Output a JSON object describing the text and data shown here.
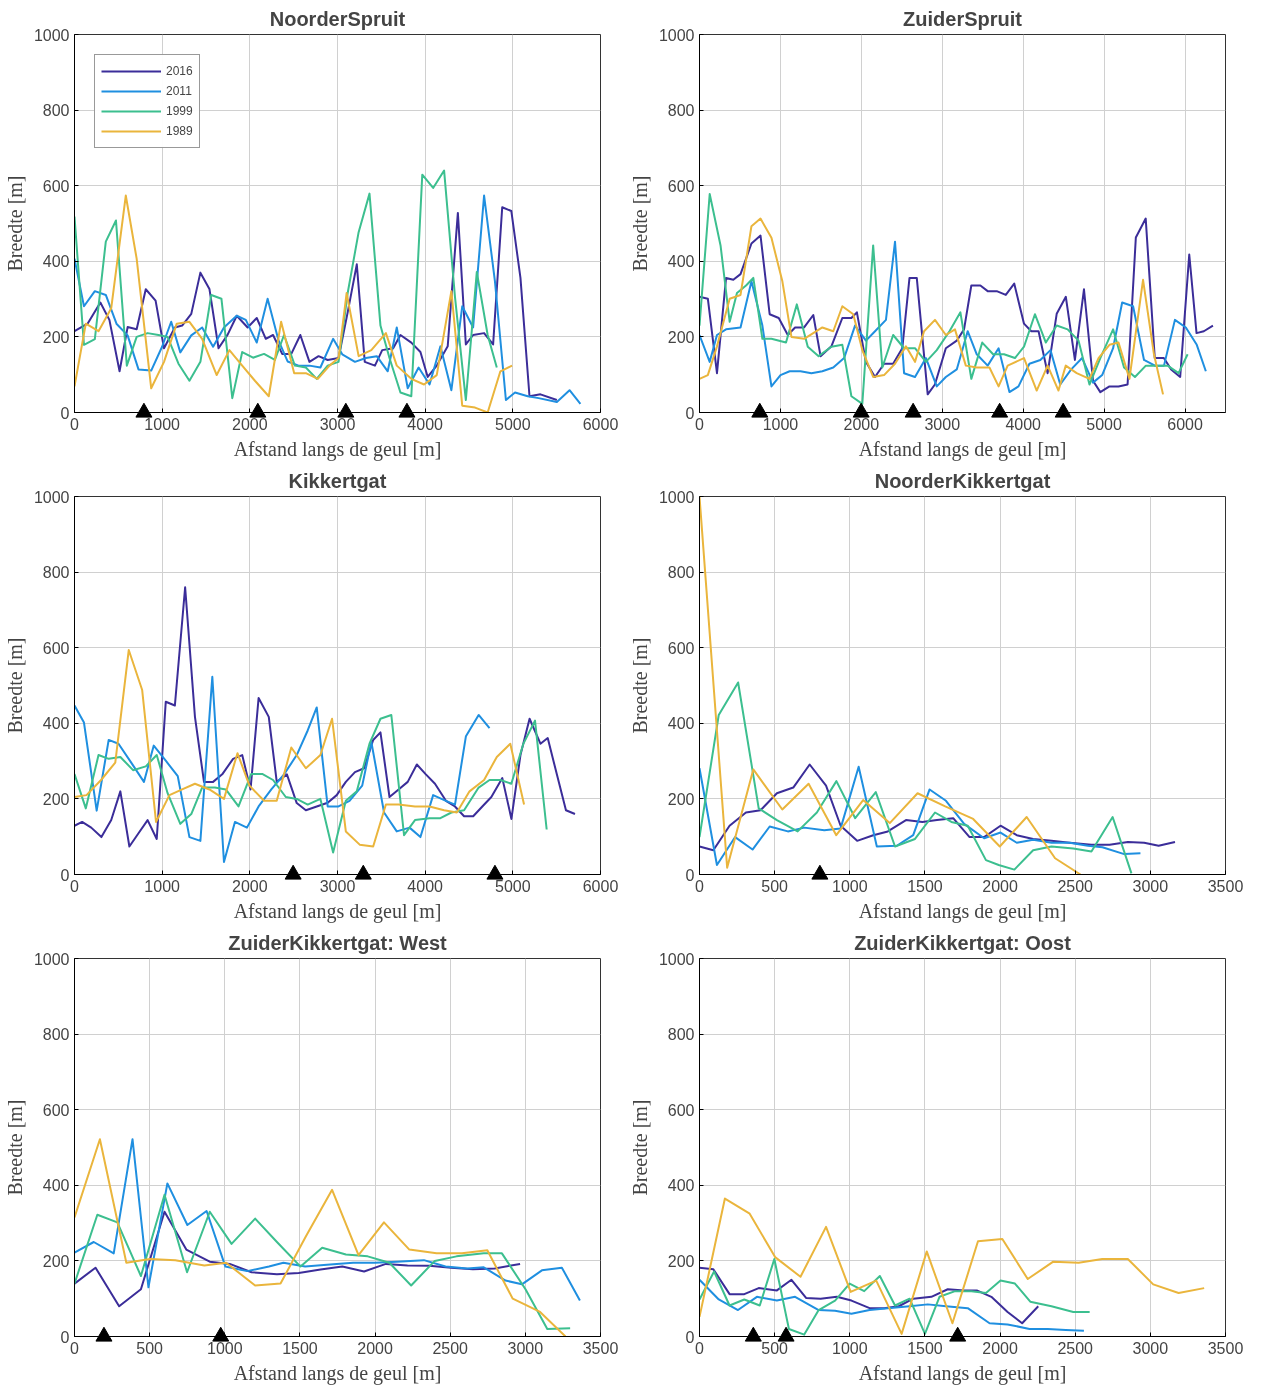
{
  "chart_data": [
    {
      "type": "line",
      "title": "NoorderSpruit",
      "xlabel": "Afstand langs de geul [m]",
      "ylabel": "Breedte [m]",
      "xlim": [
        0,
        6000
      ],
      "xticks": [
        0,
        1000,
        2000,
        3000,
        4000,
        5000,
        6000
      ],
      "ylim": [
        0,
        1000
      ],
      "yticks": [
        0,
        200,
        400,
        600,
        800,
        1000
      ],
      "grid": true,
      "legend": "top left",
      "series": [
        {
          "name": "2016",
          "color": "#3b2d99",
          "x": [
            0,
            149,
            295,
            398,
            514,
            606,
            709,
            813,
            925,
            1021,
            1145,
            1228,
            1332,
            1436,
            1539,
            1643,
            1747,
            1851,
            1975,
            2079,
            2182,
            2265,
            2369,
            2473,
            2576,
            2680,
            2784,
            2888,
            3012,
            3116,
            3220,
            3311,
            3427,
            3510,
            3635,
            3718,
            3842,
            3946,
            4029,
            4132,
            4257,
            4373,
            4464,
            4547,
            4672,
            4775,
            4879,
            4983,
            5087,
            5190,
            5315,
            5502
          ],
          "values": [
            215,
            235,
            291,
            245,
            109,
            226,
            220,
            326,
            296,
            170,
            225,
            230,
            261,
            370,
            327,
            170,
            206,
            256,
            225,
            250,
            195,
            205,
            155,
            155,
            205,
            134,
            149,
            139,
            144,
            265,
            392,
            134,
            124,
            165,
            170,
            205,
            185,
            160,
            94,
            124,
            175,
            528,
            180,
            205,
            210,
            180,
            543,
            533,
            356,
            43,
            48,
            33
          ]
        },
        {
          "name": "2011",
          "color": "#1f8fe0",
          "x": [
            0,
            108,
            232,
            357,
            481,
            606,
            730,
            875,
            999,
            1103,
            1207,
            1332,
            1456,
            1581,
            1705,
            1850,
            1954,
            2079,
            2203,
            2328,
            2431,
            2556,
            2680,
            2805,
            2950,
            3054,
            3199,
            3324,
            3448,
            3573,
            3676,
            3801,
            3925,
            4050,
            4174,
            4299,
            4423,
            4547,
            4672,
            4796,
            4921,
            5025,
            5170,
            5294,
            5502,
            5647,
            5771
          ],
          "values": [
            407,
            281,
            321,
            311,
            234,
            204,
            114,
            111,
            174,
            240,
            159,
            204,
            225,
            174,
            225,
            256,
            245,
            185,
            301,
            190,
            135,
            124,
            124,
            119,
            195,
            154,
            134,
            144,
            149,
            109,
            225,
            64,
            119,
            74,
            175,
            59,
            281,
            225,
            574,
            347,
            33,
            53,
            43,
            38,
            28,
            59,
            23
          ]
        },
        {
          "name": "1999",
          "color": "#3cbf8f",
          "x": [
            0,
            108,
            232,
            357,
            473,
            597,
            709,
            834,
            958,
            1062,
            1186,
            1311,
            1436,
            1560,
            1676,
            1800,
            1913,
            2037,
            2162,
            2286,
            2390,
            2514,
            2639,
            2763,
            2888,
            3012,
            3116,
            3241,
            3365,
            3490,
            3593,
            3718,
            3842,
            3967,
            4091,
            4216,
            4340,
            4464,
            4589,
            4713,
            4817
          ],
          "values": [
            518,
            179,
            194,
            452,
            508,
            124,
            200,
            210,
            205,
            200,
            129,
            84,
            134,
            311,
            301,
            38,
            160,
            145,
            155,
            139,
            205,
            124,
            119,
            89,
            124,
            134,
            316,
            477,
            579,
            230,
            144,
            53,
            43,
            629,
            594,
            640,
            306,
            33,
            372,
            205,
            119
          ]
        },
        {
          "name": "1989",
          "color": "#eab53c",
          "x": [
            0,
            129,
            274,
            419,
            585,
            709,
            875,
            1021,
            1166,
            1311,
            1456,
            1622,
            1767,
            1913,
            2058,
            2216,
            2357,
            2506,
            2639,
            2776,
            2909,
            3012,
            3104,
            3241,
            3386,
            3552,
            3676,
            3842,
            3987,
            4132,
            4299,
            4423,
            4569,
            4713,
            4858,
            4991
          ],
          "values": [
            69,
            235,
            215,
            276,
            574,
            407,
            64,
            134,
            235,
            240,
            195,
            99,
            165,
            124,
            84,
            43,
            240,
            104,
            104,
            89,
            124,
            144,
            316,
            149,
            165,
            210,
            124,
            89,
            74,
            99,
            321,
            18,
            13,
            0,
            109,
            124
          ]
        },
        {
          "type": "scatter",
          "marker": "triangle",
          "color": "#000000",
          "x": [
            792,
            2091,
            3095,
            3792
          ],
          "values": [
            0,
            0,
            0,
            0
          ]
        }
      ]
    },
    {
      "type": "line",
      "title": "ZuiderSpruit",
      "xlabel": "Afstand langs de geul [m]",
      "ylabel": "Breedte [m]",
      "xlim": [
        0,
        6500
      ],
      "xticks": [
        0,
        1000,
        2000,
        3000,
        4000,
        5000,
        6000
      ],
      "ylim": [
        0,
        1000
      ],
      "yticks": [
        0,
        200,
        400,
        600,
        800,
        1000
      ],
      "grid": true,
      "series": [
        {
          "color": "#3b2d99",
          "x": [
            0,
            103,
            216,
            328,
            418,
            507,
            642,
            754,
            867,
            979,
            1091,
            1181,
            1293,
            1406,
            1496,
            1630,
            1765,
            1877,
            1945,
            2056,
            2169,
            2281,
            2393,
            2506,
            2595,
            2685,
            2820,
            2909,
            3044,
            3179,
            3269,
            3359,
            3471,
            3561,
            3673,
            3785,
            3889,
            4010,
            4100,
            4190,
            4302,
            4414,
            4527,
            4639,
            4751,
            4863,
            4953,
            5066,
            5178,
            5290,
            5392,
            5514,
            5626,
            5738,
            5828,
            5940,
            6052,
            6142,
            6232,
            6345
          ],
          "values": [
            306,
            301,
            104,
            356,
            351,
            366,
            447,
            468,
            260,
            250,
            205,
            225,
            225,
            258,
            149,
            175,
            250,
            250,
            265,
            134,
            94,
            129,
            129,
            170,
            356,
            356,
            48,
            74,
            170,
            190,
            220,
            336,
            336,
            321,
            321,
            311,
            341,
            235,
            215,
            215,
            104,
            261,
            306,
            139,
            326,
            84,
            54,
            69,
            69,
            74,
            463,
            513,
            144,
            144,
            114,
            94,
            418,
            210,
            215,
            230
          ]
        },
        {
          "color": "#1f8fe0",
          "x": [
            0,
            126,
            216,
            328,
            507,
            642,
            777,
            889,
            1001,
            1114,
            1248,
            1383,
            1518,
            1653,
            1787,
            1922,
            2057,
            2169,
            2304,
            2416,
            2528,
            2663,
            2798,
            2932,
            3044,
            3179,
            3314,
            3426,
            3561,
            3696,
            3830,
            3942,
            4077,
            4212,
            4337,
            4458,
            4593,
            4728,
            4863,
            4976,
            5111,
            5223,
            5358,
            5493,
            5628,
            5740,
            5875,
            6010,
            6145,
            6257
          ],
          "values": [
            205,
            134,
            205,
            220,
            225,
            347,
            230,
            69,
            99,
            109,
            109,
            104,
            109,
            119,
            144,
            230,
            190,
            215,
            245,
            452,
            104,
            94,
            144,
            69,
            94,
            114,
            215,
            154,
            124,
            170,
            54,
            69,
            129,
            139,
            165,
            74,
            114,
            144,
            79,
            99,
            170,
            291,
            281,
            139,
            124,
            124,
            245,
            225,
            179,
            109
          ]
        },
        {
          "color": "#3cbf8f",
          "x": [
            0,
            126,
            260,
            373,
            463,
            575,
            665,
            777,
            889,
            1069,
            1203,
            1338,
            1472,
            1630,
            1765,
            1877,
            2012,
            2146,
            2259,
            2393,
            2528,
            2663,
            2798,
            2932,
            3089,
            3224,
            3359,
            3494,
            3628,
            3763,
            3898,
            4010,
            4145,
            4280,
            4414,
            4549,
            4684,
            4819,
            4953,
            5111,
            5246,
            5381,
            5516,
            5650,
            5785,
            5920,
            6032
          ],
          "values": [
            230,
            578,
            442,
            240,
            316,
            336,
            356,
            195,
            195,
            185,
            286,
            174,
            149,
            174,
            179,
            43,
            23,
            442,
            119,
            205,
            170,
            170,
            134,
            165,
            215,
            265,
            89,
            185,
            154,
            154,
            144,
            174,
            260,
            185,
            230,
            220,
            190,
            74,
            144,
            220,
            119,
            94,
            124,
            124,
            124,
            104,
            154
          ]
        },
        {
          "color": "#eab53c",
          "x": [
            0,
            103,
            216,
            373,
            507,
            642,
            754,
            889,
            1024,
            1136,
            1293,
            1518,
            1653,
            1765,
            1900,
            2012,
            2146,
            2281,
            2416,
            2551,
            2663,
            2775,
            2910,
            3044,
            3157,
            3291,
            3426,
            3583,
            3696,
            3808,
            4010,
            4167,
            4302,
            4436,
            4526,
            4661,
            4819,
            4931,
            5066,
            5178,
            5313,
            5481,
            5616,
            5728
          ],
          "values": [
            89,
            99,
            175,
            301,
            311,
            493,
            513,
            462,
            347,
            200,
            195,
            225,
            215,
            281,
            260,
            165,
            94,
            99,
            129,
            175,
            134,
            215,
            245,
            205,
            220,
            124,
            119,
            119,
            69,
            124,
            144,
            58,
            124,
            58,
            124,
            104,
            89,
            144,
            179,
            185,
            89,
            351,
            154,
            48
          ]
        },
        {
          "type": "scatter",
          "marker": "triangle",
          "color": "#000000",
          "x": [
            745,
            1998,
            2640,
            3709,
            4494
          ],
          "values": [
            0,
            0,
            0,
            0,
            0
          ]
        }
      ]
    },
    {
      "type": "line",
      "title": "Kikkertgat",
      "xlabel": "Afstand langs de geul [m]",
      "ylabel": "Breedte [m]",
      "xlim": [
        0,
        6000
      ],
      "xticks": [
        0,
        1000,
        2000,
        3000,
        4000,
        5000,
        6000
      ],
      "ylim": [
        0,
        1000
      ],
      "yticks": [
        0,
        200,
        400,
        600,
        800,
        1000
      ],
      "grid": true,
      "series": [
        {
          "color": "#3b2d99",
          "x": [
            0,
            87,
            191,
            307,
            419,
            523,
            626,
            730,
            834,
            938,
            1041,
            1145,
            1262,
            1374,
            1477,
            1581,
            1685,
            1809,
            1913,
            2008,
            2100,
            2216,
            2307,
            2423,
            2535,
            2639,
            2763,
            2888,
            2991,
            3095,
            3199,
            3303,
            3407,
            3490,
            3593,
            3697,
            3801,
            3905,
            4008,
            4112,
            4237,
            4340,
            4444,
            4548,
            4652,
            4755,
            4880,
            4984,
            5087,
            5191,
            5315,
            5398,
            5502,
            5606,
            5709
          ],
          "values": [
            129,
            139,
            124,
            99,
            144,
            220,
            74,
            109,
            144,
            94,
            457,
            447,
            760,
            417,
            245,
            245,
            265,
            306,
            316,
            225,
            467,
            417,
            245,
            265,
            189,
            170,
            180,
            190,
            210,
            245,
            271,
            281,
            356,
            376,
            205,
            225,
            245,
            291,
            265,
            240,
            195,
            180,
            154,
            154,
            180,
            205,
            255,
            147,
            316,
            412,
            346,
            361,
            265,
            170,
            160
          ]
        },
        {
          "color": "#1f8fe0",
          "x": [
            0,
            108,
            253,
            390,
            502,
            647,
            792,
            904,
            1041,
            1178,
            1311,
            1436,
            1572,
            1705,
            1830,
            1967,
            2100,
            2245,
            2390,
            2535,
            2660,
            2763,
            2888,
            3012,
            3137,
            3282,
            3386,
            3531,
            3676,
            3822,
            3946,
            4091,
            4237,
            4340,
            4465,
            4610,
            4734
          ],
          "values": [
            447,
            402,
            169,
            356,
            346,
            296,
            245,
            341,
            301,
            260,
            99,
            89,
            523,
            33,
            139,
            124,
            180,
            225,
            265,
            316,
            381,
            442,
            180,
            180,
            195,
            235,
            351,
            164,
            114,
            124,
            99,
            210,
            195,
            185,
            366,
            422,
            387
          ]
        },
        {
          "color": "#3cbf8f",
          "x": [
            0,
            129,
            274,
            390,
            523,
            668,
            813,
            938,
            1062,
            1207,
            1332,
            1456,
            1601,
            1726,
            1871,
            2016,
            2141,
            2265,
            2410,
            2535,
            2660,
            2805,
            2950,
            3095,
            3220,
            3365,
            3490,
            3614,
            3759,
            3884,
            4050,
            4174,
            4299,
            4444,
            4610,
            4734,
            4859,
            4983,
            5120,
            5253,
            5386
          ],
          "values": [
            266,
            175,
            316,
            306,
            311,
            276,
            286,
            316,
            215,
            134,
            160,
            230,
            230,
            225,
            180,
            266,
            266,
            250,
            205,
            200,
            185,
            200,
            58,
            195,
            220,
            346,
            412,
            422,
            104,
            144,
            149,
            149,
            164,
            170,
            230,
            250,
            250,
            240,
            346,
            407,
            119
          ]
        },
        {
          "color": "#eab53c",
          "x": [
            0,
            137,
            303,
            465,
            619,
            772,
            930,
            1083,
            1228,
            1374,
            1539,
            1705,
            1859,
            1996,
            2162,
            2307,
            2473,
            2639,
            2805,
            2938,
            3095,
            3253,
            3407,
            3552,
            3697,
            3884,
            4050,
            4216,
            4361,
            4506,
            4672,
            4817,
            4971,
            5128
          ],
          "values": [
            205,
            210,
            250,
            296,
            594,
            488,
            139,
            210,
            225,
            240,
            225,
            200,
            321,
            235,
            195,
            195,
            336,
            281,
            316,
            412,
            114,
            79,
            74,
            185,
            185,
            180,
            180,
            170,
            164,
            220,
            250,
            311,
            346,
            185
          ]
        },
        {
          "type": "scatter",
          "marker": "triangle",
          "color": "#000000",
          "x": [
            2494,
            3294,
            4796
          ],
          "values": [
            0,
            0,
            0
          ]
        }
      ]
    },
    {
      "type": "line",
      "title": "NoorderKikkertgat",
      "xlabel": "Afstand langs de geul [m]",
      "ylabel": "Breedte [m]",
      "xlim": [
        0,
        3500
      ],
      "xticks": [
        0,
        500,
        1000,
        1500,
        2000,
        2500,
        3000,
        3500
      ],
      "ylim": [
        0,
        1000
      ],
      "yticks": [
        0,
        200,
        400,
        600,
        800,
        1000
      ],
      "grid": true,
      "series": [
        {
          "color": "#3b2d99",
          "x": [
            0,
            92,
            200,
            309,
            406,
            515,
            624,
            733,
            842,
            939,
            1049,
            1156,
            1253,
            1374,
            1483,
            1580,
            1688,
            1797,
            1894,
            2003,
            2111,
            2220,
            2342,
            2463,
            2608,
            2729,
            2850,
            2959,
            3055,
            3164
          ],
          "values": [
            74,
            64,
            129,
            164,
            170,
            215,
            230,
            291,
            235,
            129,
            89,
            104,
            114,
            144,
            139,
            144,
            149,
            99,
            99,
            129,
            104,
            94,
            89,
            84,
            79,
            79,
            86,
            84,
            76,
            86
          ]
        },
        {
          "color": "#1f8fe0",
          "x": [
            0,
            116,
            237,
            353,
            467,
            588,
            697,
            830,
            939,
            1059,
            1180,
            1313,
            1422,
            1531,
            1640,
            1761,
            1894,
            2003,
            2111,
            2220,
            2342,
            2463,
            2584,
            2681,
            2826,
            2934
          ],
          "values": [
            281,
            25,
            99,
            66,
            127,
            114,
            124,
            117,
            122,
            285,
            74,
            76,
            104,
            225,
            195,
            134,
            96,
            111,
            84,
            92,
            84,
            84,
            76,
            72,
            54,
            56
          ]
        },
        {
          "color": "#3cbf8f",
          "x": [
            0,
            128,
            257,
            394,
            515,
            653,
            781,
            911,
            1036,
            1173,
            1301,
            1434,
            1567,
            1676,
            1785,
            1906,
            1991,
            2095,
            2220,
            2342,
            2487,
            2608,
            2749,
            2874
          ],
          "values": [
            99,
            422,
            508,
            175,
            144,
            114,
            164,
            247,
            149,
            218,
            74,
            94,
            164,
            139,
            129,
            38,
            25,
            13,
            64,
            74,
            69,
            61,
            152,
            3
          ]
        },
        {
          "color": "#eab53c",
          "x": [
            0,
            184,
            358,
            551,
            726,
            910,
            1089,
            1266,
            1451,
            1635,
            1821,
            1998,
            2177,
            2366,
            2535
          ],
          "values": [
            1000,
            18,
            278,
            172,
            240,
            104,
            197,
            136,
            215,
            180,
            147,
            74,
            152,
            43,
            0
          ]
        },
        {
          "type": "scatter",
          "marker": "triangle",
          "color": "#000000",
          "x": [
            801
          ],
          "values": [
            0
          ]
        }
      ]
    },
    {
      "type": "line",
      "title": "ZuiderKikkertgat: West",
      "xlabel": "Afstand langs de geul [m]",
      "ylabel": "Breedte [m]",
      "xlim": [
        0,
        3500
      ],
      "xticks": [
        0,
        500,
        1000,
        1500,
        2000,
        2500,
        3000,
        3500
      ],
      "ylim": [
        0,
        1000
      ],
      "yticks": [
        0,
        200,
        400,
        600,
        800,
        1000
      ],
      "grid": true,
      "series": [
        {
          "color": "#3b2d99",
          "x": [
            0,
            140,
            297,
            442,
            599,
            744,
            900,
            1033,
            1178,
            1347,
            1492,
            1637,
            1782,
            1927,
            2072,
            2216,
            2361,
            2506,
            2651,
            2796,
            2965
          ],
          "values": [
            140,
            182,
            80,
            125,
            330,
            230,
            198,
            192,
            170,
            165,
            168,
            177,
            185,
            172,
            192,
            188,
            187,
            182,
            178,
            180,
            192
          ]
        },
        {
          "color": "#1f8fe0",
          "x": [
            0,
            128,
            261,
            386,
            492,
            618,
            751,
            879,
            1004,
            1149,
            1294,
            1390,
            1535,
            1680,
            1854,
            1999,
            2144,
            2325,
            2469,
            2614,
            2723,
            2868,
            2977,
            3110,
            3243,
            3363
          ],
          "values": [
            222,
            250,
            220,
            522,
            130,
            405,
            295,
            332,
            185,
            173,
            185,
            195,
            185,
            190,
            195,
            195,
            198,
            202,
            185,
            180,
            183,
            148,
            138,
            175,
            182,
            95
          ]
        },
        {
          "color": "#3cbf8f",
          "x": [
            0,
            152,
            285,
            442,
            599,
            749,
            900,
            1045,
            1202,
            1347,
            1504,
            1648,
            1806,
            1951,
            2095,
            2240,
            2397,
            2542,
            2723,
            2844,
            3001,
            3146,
            3298
          ],
          "values": [
            140,
            322,
            302,
            160,
            375,
            170,
            330,
            245,
            312,
            250,
            185,
            235,
            217,
            212,
            195,
            135,
            200,
            212,
            220,
            220,
            125,
            20,
            22
          ]
        },
        {
          "color": "#eab53c",
          "x": [
            0,
            169,
            345,
            502,
            671,
            864,
            1009,
            1202,
            1371,
            1540,
            1714,
            1890,
            2059,
            2228,
            2409,
            2578,
            2747,
            2916,
            3098,
            3267
          ],
          "values": [
            315,
            522,
            195,
            205,
            202,
            188,
            195,
            135,
            140,
            265,
            388,
            215,
            302,
            230,
            220,
            220,
            228,
            100,
            65,
            0
          ]
        },
        {
          "type": "scatter",
          "marker": "triangle",
          "color": "#000000",
          "x": [
            196,
            973
          ],
          "values": [
            0,
            0
          ]
        }
      ]
    },
    {
      "type": "line",
      "title": "ZuiderKikkertgat: Oost",
      "xlabel": "Afstand langs de geul [m]",
      "ylabel": "Breedte [m]",
      "xlim": [
        0,
        3500
      ],
      "xticks": [
        0,
        500,
        1000,
        1500,
        2000,
        2500,
        3000,
        3500
      ],
      "ylim": [
        0,
        1000
      ],
      "yticks": [
        0,
        200,
        400,
        600,
        800,
        1000
      ],
      "grid": true,
      "series": [
        {
          "color": "#3b2d99",
          "x": [
            0,
            92,
            200,
            298,
            394,
            515,
            612,
            709,
            806,
            914,
            1011,
            1132,
            1229,
            1326,
            1422,
            1543,
            1652,
            1761,
            1845,
            1942,
            2050,
            2147,
            2254
          ],
          "values": [
            182,
            178,
            112,
            112,
            128,
            122,
            150,
            102,
            100,
            105,
            95,
            75,
            75,
            80,
            100,
            105,
            125,
            122,
            122,
            105,
            65,
            35,
            80
          ]
        },
        {
          "color": "#1f8fe0",
          "x": [
            0,
            128,
            256,
            382,
            515,
            636,
            793,
            902,
            1011,
            1132,
            1253,
            1398,
            1519,
            1640,
            1785,
            1930,
            2050,
            2196,
            2317,
            2437,
            2558
          ],
          "values": [
            150,
            98,
            70,
            105,
            95,
            105,
            70,
            68,
            60,
            70,
            75,
            80,
            85,
            80,
            75,
            35,
            32,
            20,
            20,
            17,
            15
          ]
        },
        {
          "color": "#3cbf8f",
          "x": [
            0,
            97,
            200,
            298,
            401,
            498,
            595,
            697,
            793,
            902,
            999,
            1096,
            1200,
            1301,
            1398,
            1500,
            1597,
            1701,
            1809,
            1906,
            2003,
            2099,
            2201,
            2342,
            2487,
            2596
          ],
          "values": [
            98,
            172,
            82,
            98,
            82,
            205,
            20,
            5,
            70,
            95,
            140,
            120,
            160,
            82,
            100,
            7,
            105,
            120,
            120,
            115,
            148,
            140,
            92,
            80,
            65,
            65
          ]
        },
        {
          "color": "#eab53c",
          "x": [
            0,
            169,
            334,
            503,
            672,
            842,
            1006,
            1176,
            1345,
            1512,
            1683,
            1853,
            2015,
            2184,
            2354,
            2523,
            2680,
            2850,
            3019,
            3188,
            3358
          ],
          "values": [
            52,
            365,
            325,
            210,
            158,
            290,
            118,
            148,
            7,
            225,
            35,
            252,
            258,
            152,
            198,
            195,
            205,
            205,
            138,
            115,
            128
          ]
        },
        {
          "type": "scatter",
          "marker": "triangle",
          "color": "#000000",
          "x": [
            358,
            576,
            1718
          ],
          "values": [
            0,
            0,
            0
          ]
        }
      ]
    }
  ]
}
